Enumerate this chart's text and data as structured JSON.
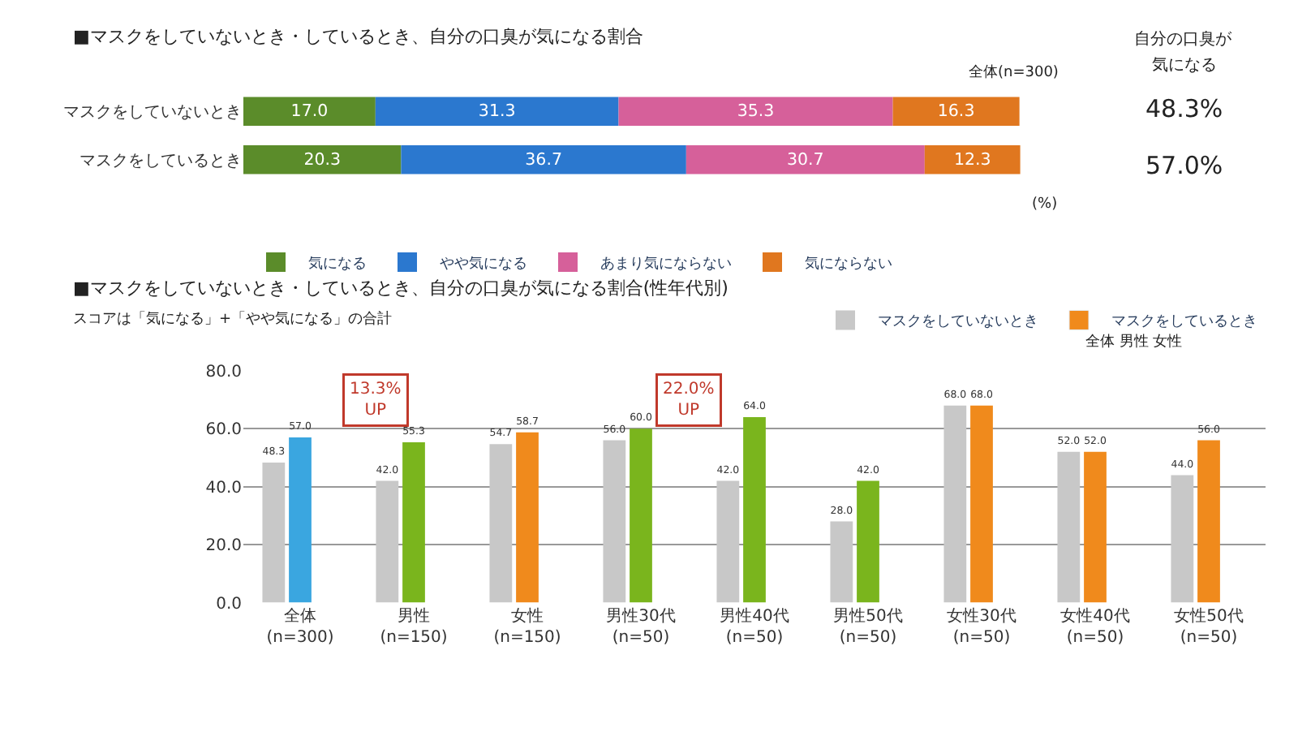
{
  "chart_data": [
    {
      "type": "bar",
      "orientation": "horizontal",
      "stacked": true,
      "title": "■マスクをしていないとき・しているとき、自分の口臭が気になる割合",
      "categories": [
        "マスクをしていないとき",
        "マスクをしているとき"
      ],
      "series": [
        {
          "name": "気になる",
          "color": "#5b8c2a",
          "values": [
            17.0,
            20.3
          ],
          "value_labels": [
            "17.0",
            "20.3"
          ]
        },
        {
          "name": "やや気になる",
          "color": "#2b78cf",
          "values": [
            31.3,
            36.7
          ],
          "value_labels": [
            "31.3",
            "36.7"
          ]
        },
        {
          "name": "あまり気にならない",
          "color": "#d6609a",
          "values": [
            35.3,
            30.7
          ],
          "value_labels": [
            "35.3",
            "30.7"
          ]
        },
        {
          "name": "気にならない",
          "color": "#e0771f",
          "values": [
            16.3,
            12.3
          ],
          "value_labels": [
            "16.3",
            "12.3"
          ]
        }
      ],
      "legend": "bottom",
      "tick_labels": "y",
      "annotations": [
        "全体(n=300)",
        "(%)",
        "自分の口臭が",
        "気になる",
        "48.3%",
        "57.0%"
      ]
    },
    {
      "type": "bar",
      "title": "■マスクをしていないとき・しているとき、自分の口臭が気になる割合(性年代別)",
      "categories": [
        "全体(n=300)",
        "男性(n=150)",
        "女性(n=150)",
        "男性30代(n=50)",
        "男性40代(n=50)",
        "男性50代(n=50)",
        "女性30代(n=50)",
        "女性40代(n=50)",
        "女性50代(n=50)"
      ],
      "series": [
        {
          "name": "マスクをしていないとき",
          "color": "#c8c8c8",
          "values": [
            48.3,
            42.0,
            54.7,
            56.0,
            42.0,
            28.0,
            68.0,
            52.0,
            44.0
          ],
          "value_labels": [
            "48.3",
            "42.0",
            "54.7",
            "56.0",
            "42.0",
            "28.0",
            "68.0",
            "52.0",
            "44.0"
          ]
        },
        {
          "name": "マスクをしているとき",
          "color": "#f08a1c",
          "colors": [
            "#3aa6e0",
            "#7ab51d",
            "#f08a1c",
            "#7ab51d",
            "#7ab51d",
            "#7ab51d",
            "#f08a1c",
            "#f08a1c",
            "#f08a1c"
          ],
          "values": [
            57.0,
            55.3,
            58.7,
            60.0,
            64.0,
            42.0,
            68.0,
            52.0,
            56.0
          ],
          "value_labels": [
            "57.0",
            "55.3",
            "58.7",
            "60.0",
            "64.0",
            "42.0",
            "68.0",
            "52.0",
            "56.0"
          ]
        }
      ],
      "ylim": [
        0,
        80
      ],
      "yticks": [
        {
          "value": 0,
          "label": "0.0"
        },
        {
          "value": 20,
          "label": "20.0"
        },
        {
          "value": 40,
          "label": "40.0"
        },
        {
          "value": 60,
          "label": "60.0"
        },
        {
          "value": 80,
          "label": "80.0"
        }
      ],
      "grid": "y",
      "legend": "top right",
      "annotations": [
        "スコアは「気になる」+「やや気になる」の合計",
        "全体 男性 女性",
        "13.3%\nUP",
        "22.0%\nUP"
      ]
    }
  ]
}
